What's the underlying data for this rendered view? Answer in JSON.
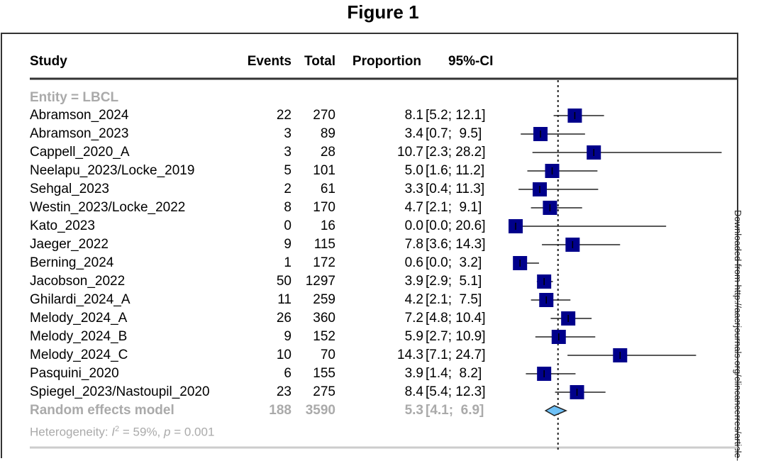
{
  "figure_title": "Figure 1",
  "side_note": "Downloaded from http://aacrjournals.org/clincancerres/article-",
  "chart_data": {
    "type": "forest",
    "columns": [
      "Study",
      "Events",
      "Total",
      "Proportion",
      "95%-CI"
    ],
    "subgroup_label": "Entity = LBCL",
    "studies": [
      {
        "study": "Abramson_2024",
        "events": "22",
        "total": "270",
        "prop": "8.1",
        "ci": "[5.2; 12.1]",
        "est": 8.1,
        "lo": 5.2,
        "hi": 12.1
      },
      {
        "study": "Abramson_2023",
        "events": "3",
        "total": "89",
        "prop": "3.4",
        "ci": "[0.7;  9.5]",
        "est": 3.4,
        "lo": 0.7,
        "hi": 9.5
      },
      {
        "study": "Cappell_2020_A",
        "events": "3",
        "total": "28",
        "prop": "10.7",
        "ci": "[2.3; 28.2]",
        "est": 10.7,
        "lo": 2.3,
        "hi": 28.2
      },
      {
        "study": "Neelapu_2023/Locke_2019",
        "events": "5",
        "total": "101",
        "prop": "5.0",
        "ci": "[1.6; 11.2]",
        "est": 5.0,
        "lo": 1.6,
        "hi": 11.2
      },
      {
        "study": "Sehgal_2023",
        "events": "2",
        "total": "61",
        "prop": "3.3",
        "ci": "[0.4; 11.3]",
        "est": 3.3,
        "lo": 0.4,
        "hi": 11.3
      },
      {
        "study": "Westin_2023/Locke_2022",
        "events": "8",
        "total": "170",
        "prop": "4.7",
        "ci": "[2.1;  9.1]",
        "est": 4.7,
        "lo": 2.1,
        "hi": 9.1
      },
      {
        "study": "Kato_2023",
        "events": "0",
        "total": "16",
        "prop": "0.0",
        "ci": "[0.0; 20.6]",
        "est": 0.0,
        "lo": 0.0,
        "hi": 20.6
      },
      {
        "study": "Jaeger_2022",
        "events": "9",
        "total": "115",
        "prop": "7.8",
        "ci": "[3.6; 14.3]",
        "est": 7.8,
        "lo": 3.6,
        "hi": 14.3
      },
      {
        "study": "Berning_2024",
        "events": "1",
        "total": "172",
        "prop": "0.6",
        "ci": "[0.0;  3.2]",
        "est": 0.6,
        "lo": 0.0,
        "hi": 3.2
      },
      {
        "study": "Jacobson_2022",
        "events": "50",
        "total": "1297",
        "prop": "3.9",
        "ci": "[2.9;  5.1]",
        "est": 3.9,
        "lo": 2.9,
        "hi": 5.1
      },
      {
        "study": "Ghilardi_2024_A",
        "events": "11",
        "total": "259",
        "prop": "4.2",
        "ci": "[2.1;  7.5]",
        "est": 4.2,
        "lo": 2.1,
        "hi": 7.5
      },
      {
        "study": "Melody_2024_A",
        "events": "26",
        "total": "360",
        "prop": "7.2",
        "ci": "[4.8; 10.4]",
        "est": 7.2,
        "lo": 4.8,
        "hi": 10.4
      },
      {
        "study": "Melody_2024_B",
        "events": "9",
        "total": "152",
        "prop": "5.9",
        "ci": "[2.7; 10.9]",
        "est": 5.9,
        "lo": 2.7,
        "hi": 10.9
      },
      {
        "study": "Melody_2024_C",
        "events": "10",
        "total": "70",
        "prop": "14.3",
        "ci": "[7.1; 24.7]",
        "est": 14.3,
        "lo": 7.1,
        "hi": 24.7
      },
      {
        "study": "Pasquini_2020",
        "events": "6",
        "total": "155",
        "prop": "3.9",
        "ci": "[1.4;  8.2]",
        "est": 3.9,
        "lo": 1.4,
        "hi": 8.2
      },
      {
        "study": "Spiegel_2023/Nastoupil_2020",
        "events": "23",
        "total": "275",
        "prop": "8.4",
        "ci": "[5.4; 12.3]",
        "est": 8.4,
        "lo": 5.4,
        "hi": 12.3
      }
    ],
    "pooled": {
      "study": "Random effects model",
      "events": "188",
      "total": "3590",
      "prop": "5.3",
      "ci": "[4.1;  6.9]",
      "est": 5.3,
      "lo": 4.1,
      "hi": 6.9
    },
    "heterogeneity": {
      "prefix": "Heterogeneity: ",
      "i2_label": "I",
      "i2_sup": "2",
      "rest": " = 59%, ",
      "p_label": "p",
      "p_rest": " = 0.001"
    },
    "reference_line": 5.8,
    "colors": {
      "square": "#00008B",
      "diamond": "#6EC1F7",
      "subgroup_text": "#aaaaaa"
    }
  }
}
